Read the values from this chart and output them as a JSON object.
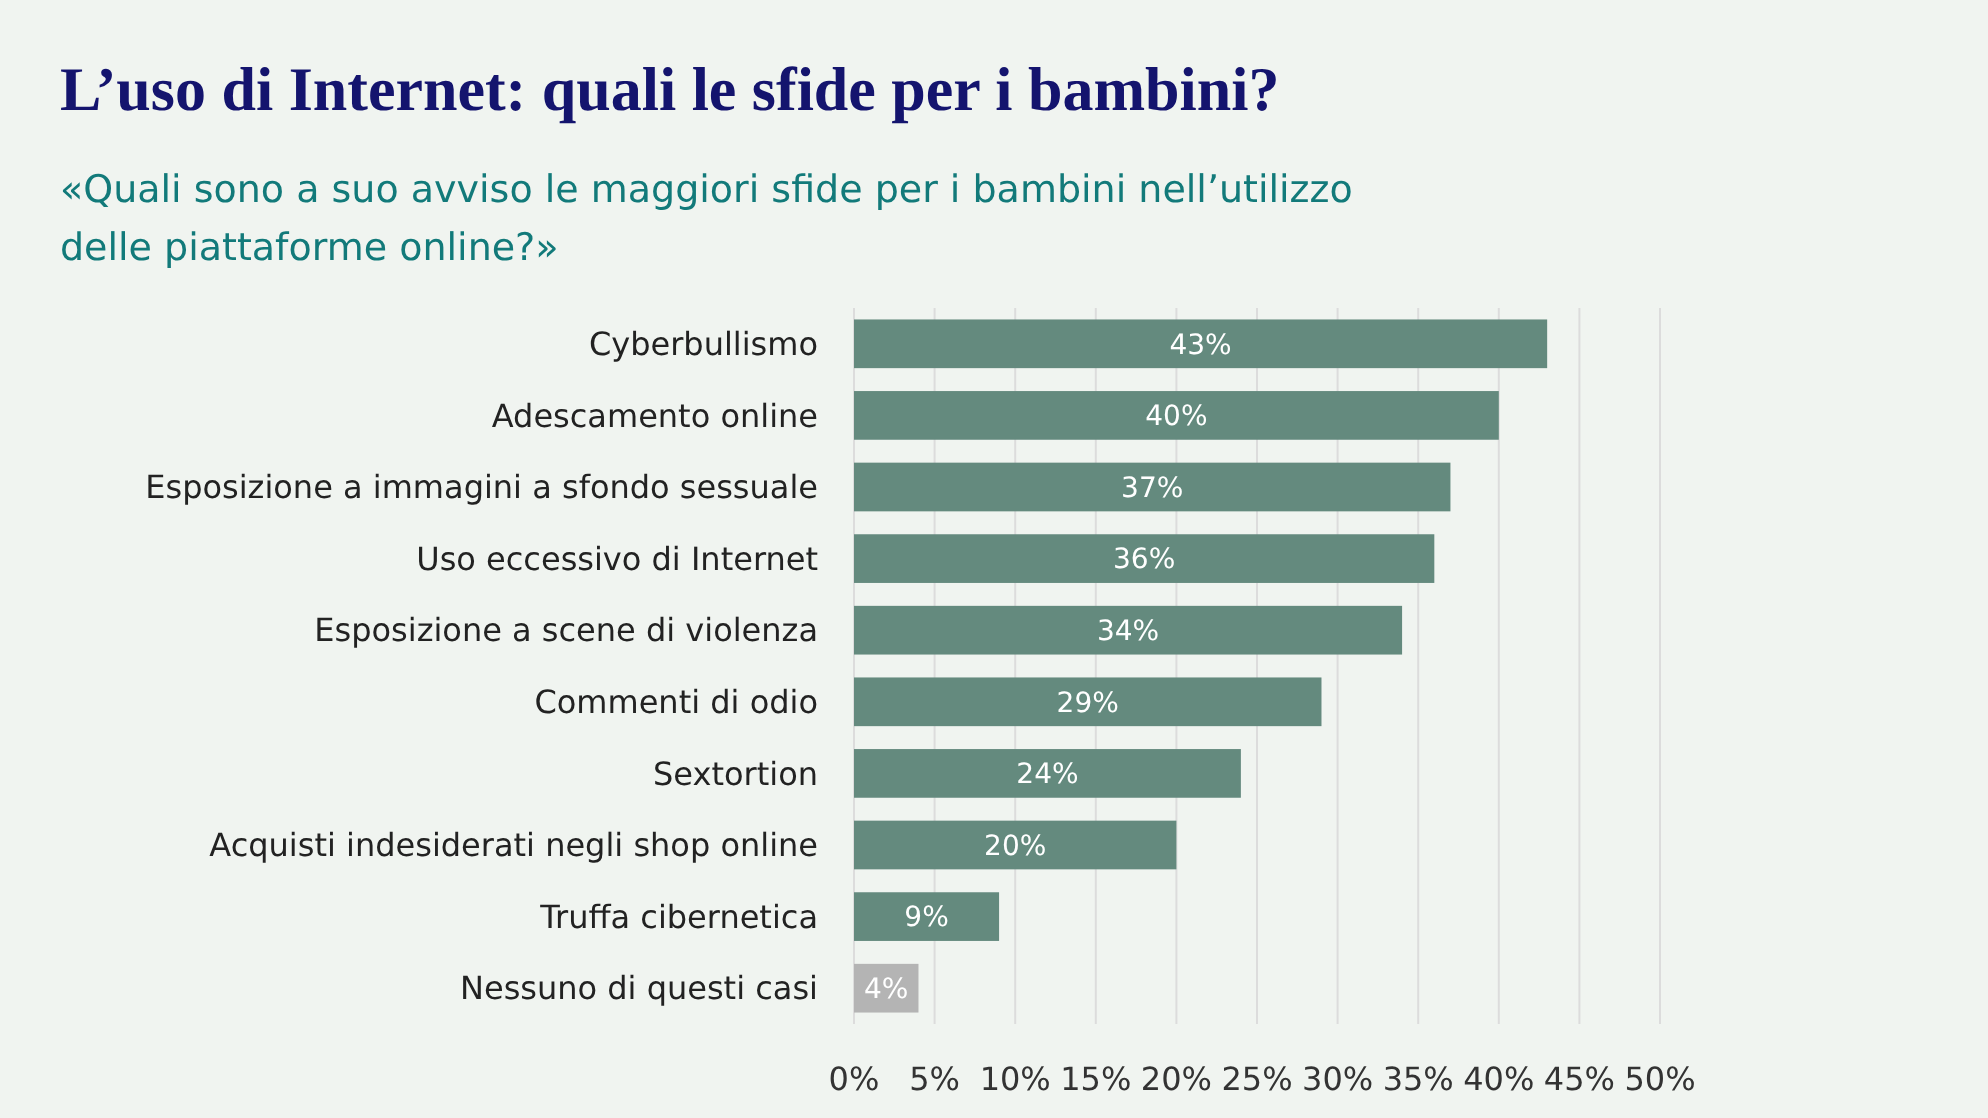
{
  "chart_data": {
    "type": "bar",
    "orientation": "horizontal",
    "title": "L’uso di Internet: quali le sfide per i bambini?",
    "subtitle": "«Quali sono a suo avviso le maggiori sfide per i bambini nell’utilizzo delle piattaforme online?»",
    "categories": [
      "Cyberbullismo",
      "Adescamento online",
      "Esposizione a immagini a sfondo sessuale",
      "Uso eccessivo di Internet",
      "Esposizione a scene di violenza",
      "Commenti di odio",
      "Sextortion",
      "Acquisti indesiderati negli shop online",
      "Truffa cibernetica",
      "Nessuno di questi casi"
    ],
    "values": [
      43,
      40,
      37,
      36,
      34,
      29,
      24,
      20,
      9,
      4
    ],
    "colors": [
      "#648a7e",
      "#648a7e",
      "#648a7e",
      "#648a7e",
      "#648a7e",
      "#648a7e",
      "#648a7e",
      "#648a7e",
      "#648a7e",
      "#b4b4b4"
    ],
    "value_labels": [
      "43%",
      "40%",
      "37%",
      "36%",
      "34%",
      "29%",
      "24%",
      "20%",
      "9%",
      "4%"
    ],
    "xlim": [
      0,
      50
    ],
    "xticks": [
      {
        "value": 0,
        "label": "0%"
      },
      {
        "value": 5,
        "label": "5%"
      },
      {
        "value": 10,
        "label": "10%"
      },
      {
        "value": 15,
        "label": "15%"
      },
      {
        "value": 20,
        "label": "20%"
      },
      {
        "value": 25,
        "label": "25%"
      },
      {
        "value": 30,
        "label": "30%"
      },
      {
        "value": 35,
        "label": "35%"
      },
      {
        "value": 40,
        "label": "40%"
      },
      {
        "value": 45,
        "label": "45%"
      },
      {
        "value": 50,
        "label": "50%"
      }
    ],
    "grid": "x"
  }
}
